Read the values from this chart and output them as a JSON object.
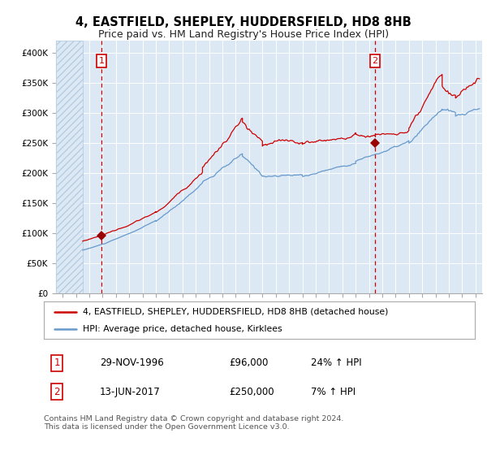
{
  "title": "4, EASTFIELD, SHEPLEY, HUDDERSFIELD, HD8 8HB",
  "subtitle": "Price paid vs. HM Land Registry's House Price Index (HPI)",
  "title_fontsize": 10.5,
  "subtitle_fontsize": 9,
  "background_color": "#ffffff",
  "plot_bg_color": "#dce9f5",
  "hatch_region_end": 1995.5,
  "sale1_date": 1996.92,
  "sale1_price": 96000,
  "sale2_date": 2017.45,
  "sale2_price": 250000,
  "legend_line1": "4, EASTFIELD, SHEPLEY, HUDDERSFIELD, HD8 8HB (detached house)",
  "legend_line2": "HPI: Average price, detached house, Kirklees",
  "table_row1": [
    "1",
    "29-NOV-1996",
    "£96,000",
    "24% ↑ HPI"
  ],
  "table_row2": [
    "2",
    "13-JUN-2017",
    "£250,000",
    "7% ↑ HPI"
  ],
  "footer": "Contains HM Land Registry data © Crown copyright and database right 2024.\nThis data is licensed under the Open Government Licence v3.0.",
  "hpi_color": "#6699cc",
  "price_color": "#cc0000",
  "marker_color": "#990000",
  "ylim": [
    0,
    420000
  ],
  "xlim": [
    1993.5,
    2025.5
  ]
}
